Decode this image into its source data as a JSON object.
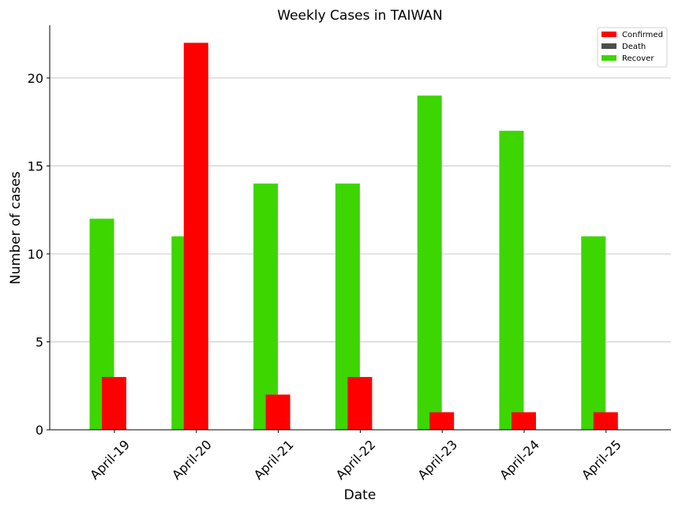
{
  "chart_data": {
    "type": "bar",
    "title": "Weekly Cases in TAIWAN",
    "xlabel": "Date",
    "ylabel": "Number of cases",
    "categories": [
      "April-19",
      "April-20",
      "April-21",
      "April-22",
      "April-23",
      "April-24",
      "April-25"
    ],
    "series": [
      {
        "name": "Confirmed",
        "color": "#ff0000",
        "values": [
          3,
          22,
          2,
          3,
          1,
          1,
          1
        ]
      },
      {
        "name": "Death",
        "color": "#4d4d4d",
        "values": [
          0,
          0,
          0,
          0,
          0,
          0,
          0
        ]
      },
      {
        "name": "Recover",
        "color": "#3dd600",
        "values": [
          12,
          11,
          14,
          14,
          19,
          17,
          11
        ]
      }
    ],
    "ylim": [
      0,
      23
    ],
    "yticks": [
      0,
      5,
      10,
      15,
      20
    ],
    "grid": "horizontal",
    "legend_position": "top-right"
  }
}
